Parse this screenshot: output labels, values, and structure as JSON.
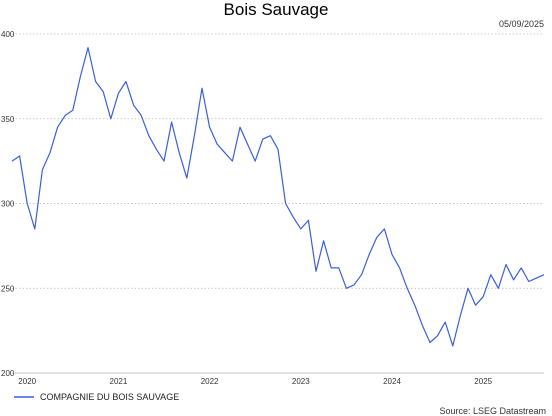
{
  "chart_data": {
    "type": "line",
    "title": "Bois Sauvage",
    "date_label": "05/09/2025",
    "source": "Source: LSEG Datastream",
    "xlabel": "",
    "ylabel": "",
    "ylim": [
      200,
      400
    ],
    "y_ticks": [
      "200",
      "250",
      "300",
      "350",
      "400"
    ],
    "x_ticks": [
      "2020",
      "2021",
      "2022",
      "2023",
      "2024",
      "2025"
    ],
    "xlim": [
      "2019-11",
      "2025-09"
    ],
    "grid": "horizontal dotted",
    "legend_position": "bottom-left",
    "series": [
      {
        "name": "COMPAGNIE DU BOIS SAUVAGE",
        "color": "#3a5fdc",
        "x": [
          "2019-11",
          "2019-12",
          "2020-01",
          "2020-02",
          "2020-03",
          "2020-04",
          "2020-05",
          "2020-06",
          "2020-07",
          "2020-08",
          "2020-09",
          "2020-10",
          "2020-11",
          "2020-12",
          "2021-01",
          "2021-02",
          "2021-03",
          "2021-04",
          "2021-05",
          "2021-06",
          "2021-07",
          "2021-08",
          "2021-09",
          "2021-10",
          "2021-11",
          "2021-12",
          "2022-01",
          "2022-02",
          "2022-03",
          "2022-04",
          "2022-05",
          "2022-06",
          "2022-07",
          "2022-08",
          "2022-09",
          "2022-10",
          "2022-11",
          "2022-12",
          "2023-01",
          "2023-02",
          "2023-03",
          "2023-04",
          "2023-05",
          "2023-06",
          "2023-07",
          "2023-08",
          "2023-09",
          "2023-10",
          "2023-11",
          "2023-12",
          "2024-01",
          "2024-02",
          "2024-03",
          "2024-04",
          "2024-05",
          "2024-06",
          "2024-07",
          "2024-08",
          "2024-09",
          "2024-10",
          "2024-11",
          "2024-12",
          "2025-01",
          "2025-02",
          "2025-03",
          "2025-04",
          "2025-05",
          "2025-06",
          "2025-07",
          "2025-08",
          "2025-09"
        ],
        "values": [
          325,
          328,
          300,
          285,
          320,
          330,
          345,
          352,
          355,
          375,
          392,
          372,
          366,
          350,
          365,
          372,
          358,
          352,
          340,
          332,
          325,
          348,
          330,
          315,
          340,
          368,
          345,
          335,
          330,
          325,
          345,
          335,
          325,
          338,
          340,
          332,
          300,
          292,
          285,
          290,
          260,
          278,
          262,
          262,
          250,
          252,
          258,
          270,
          280,
          285,
          270,
          262,
          250,
          240,
          228,
          218,
          222,
          230,
          216,
          234,
          250,
          240,
          245,
          258,
          250,
          264,
          255,
          262,
          254,
          256,
          258
        ]
      }
    ]
  }
}
